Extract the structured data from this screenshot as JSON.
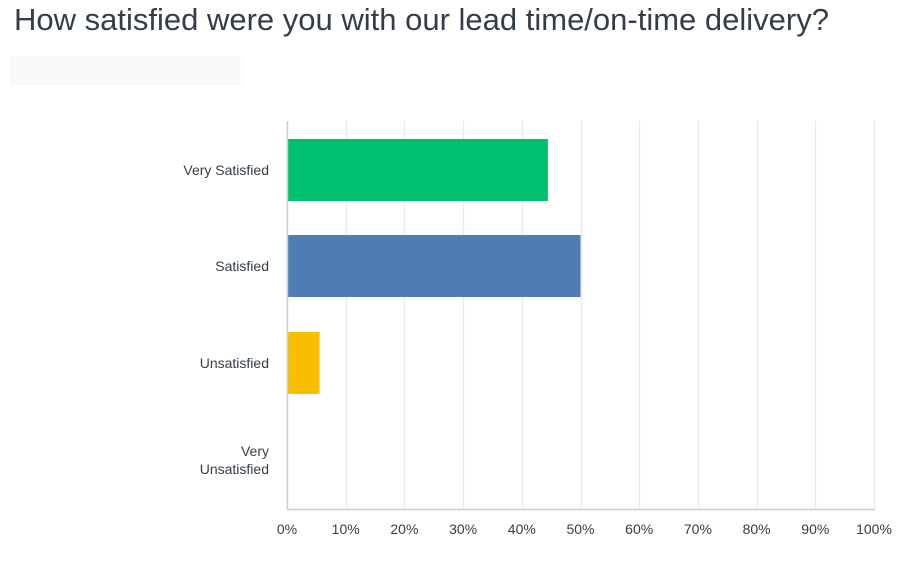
{
  "question": {
    "title": "How satisfied were you with our lead time/on-time delivery?"
  },
  "chart_data": {
    "type": "bar",
    "orientation": "horizontal",
    "title": "How satisfied were you with our lead time/on-time delivery?",
    "categories": [
      "Very Satisfied",
      "Satisfied",
      "Unsatisfied",
      "Very Unsatisfied"
    ],
    "category_lines": [
      [
        "Very Satisfied"
      ],
      [
        "Satisfied"
      ],
      [
        "Unsatisfied"
      ],
      [
        "Very",
        "Unsatisfied"
      ]
    ],
    "values": [
      44.44,
      50.0,
      5.56,
      0
    ],
    "colors": [
      "#00bf6f",
      "#507cb6",
      "#f9be00",
      "#6bc8cd"
    ],
    "xlim": [
      0,
      100
    ],
    "x_ticks": [
      0,
      10,
      20,
      30,
      40,
      50,
      60,
      70,
      80,
      90,
      100
    ],
    "x_tick_labels": [
      "0%",
      "10%",
      "20%",
      "30%",
      "40%",
      "50%",
      "60%",
      "70%",
      "80%",
      "90%",
      "100%"
    ],
    "grid": true,
    "xlabel": "",
    "ylabel": ""
  }
}
